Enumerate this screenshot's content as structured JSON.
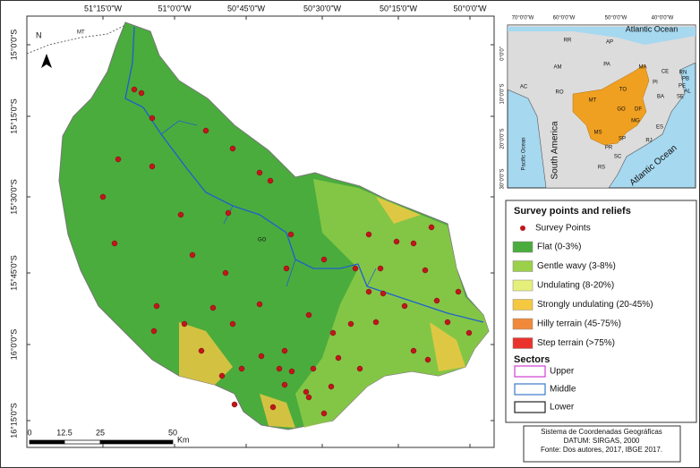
{
  "map": {
    "longitude_labels": [
      "51°15'0\"W",
      "51°0'0\"W",
      "50°45'0\"W",
      "50°30'0\"W",
      "50°15'0\"W",
      "50°0'0\"W"
    ],
    "latitude_labels": [
      "15°0'0\"S",
      "15°15'0\"S",
      "15°30'0\"S",
      "15°45'0\"S",
      "16°0'0\"S",
      "16°15'0\"S"
    ],
    "north": "N",
    "mt_label": "MT",
    "go_label": "GO",
    "scale_labels": [
      "0",
      "12.5",
      "25",
      "50"
    ],
    "scale_unit": "Km"
  },
  "inset": {
    "lon_labels": [
      "70°0'0\"W",
      "60°0'0\"W",
      "50°0'0\"W",
      "40°0'0\"W"
    ],
    "lat_labels": [
      "0°0'0\"",
      "10°0'0\"S",
      "20°0'0\"S",
      "30°0'0\"S"
    ],
    "ocean_top": "Atlantic Ocean",
    "continent": "South America",
    "pacific": "Pacific Ocean",
    "ocean_bottom": "Atlantic Ocean",
    "states": [
      "RR",
      "AP",
      "AM",
      "PA",
      "MA",
      "CE",
      "RN",
      "PB",
      "PE",
      "AL",
      "SE",
      "PI",
      "TO",
      "BA",
      "AC",
      "RO",
      "MT",
      "GO",
      "DF",
      "MG",
      "ES",
      "MS",
      "SP",
      "RJ",
      "PR",
      "SC",
      "RS"
    ]
  },
  "legend": {
    "title": "Survey points and reliefs",
    "points": "Survey Points",
    "items": [
      {
        "name": "Flat (0-3%)",
        "color": "#4aac3c"
      },
      {
        "name": "Gentle wavy (3-8%)",
        "color": "#9bd14a"
      },
      {
        "name": "Undulating (8-20%)",
        "color": "#e5f07a"
      },
      {
        "name": "Strongly undulating (20-45%)",
        "color": "#f5c842"
      },
      {
        "name": "Hilly terrain (45-75%)",
        "color": "#f08a3a"
      },
      {
        "name": "Step terrain (>75%)",
        "color": "#e8342c"
      }
    ],
    "sectors_title": "Sectors",
    "sectors": [
      {
        "name": "Upper",
        "color": "#d040d0"
      },
      {
        "name": "Middle",
        "color": "#3a7ac8"
      },
      {
        "name": "Lower",
        "color": "#222222"
      }
    ]
  },
  "credits": [
    "Sistema de Coordenadas Geográficas",
    "DATUM: SIRGAS, 2000",
    "Fonte: Dos autores, 2017, IBGE 2017."
  ]
}
